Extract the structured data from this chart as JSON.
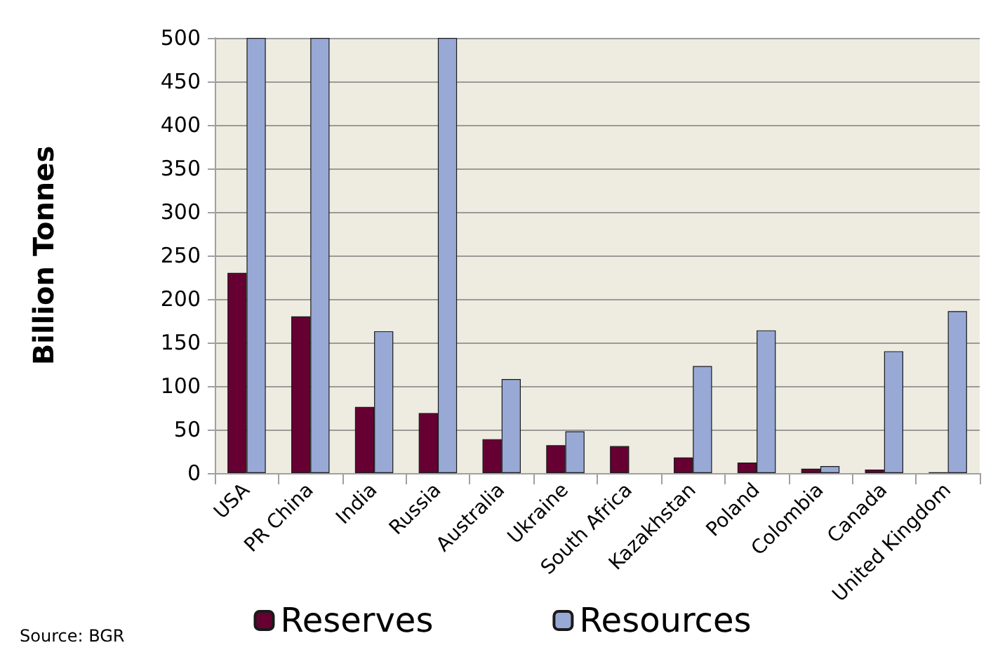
{
  "chart_data": {
    "type": "bar",
    "ylabel": "Billion Tonnes",
    "categories": [
      "USA",
      "PR China",
      "India",
      "Russia",
      "Australia",
      "Ukraine",
      "South Africa",
      "Kazakhstan",
      "Poland",
      "Colombia",
      "Canada",
      "United Kingdom"
    ],
    "series": [
      {
        "name": "Reserves",
        "color": "#660033",
        "values": [
          230,
          180,
          76,
          69,
          39,
          32,
          31,
          18,
          12,
          5,
          4,
          1
        ]
      },
      {
        "name": "Resources",
        "color": "#99a9d5",
        "values": [
          500,
          500,
          163,
          500,
          108,
          48,
          null,
          123,
          164,
          8,
          140,
          186
        ]
      }
    ],
    "ylim": [
      0,
      500
    ],
    "yticks": [
      0,
      50,
      100,
      150,
      200,
      250,
      300,
      350,
      400,
      450,
      500
    ],
    "grid": "y",
    "legend": "bottom",
    "annotations": [
      "Source: BGR"
    ]
  }
}
